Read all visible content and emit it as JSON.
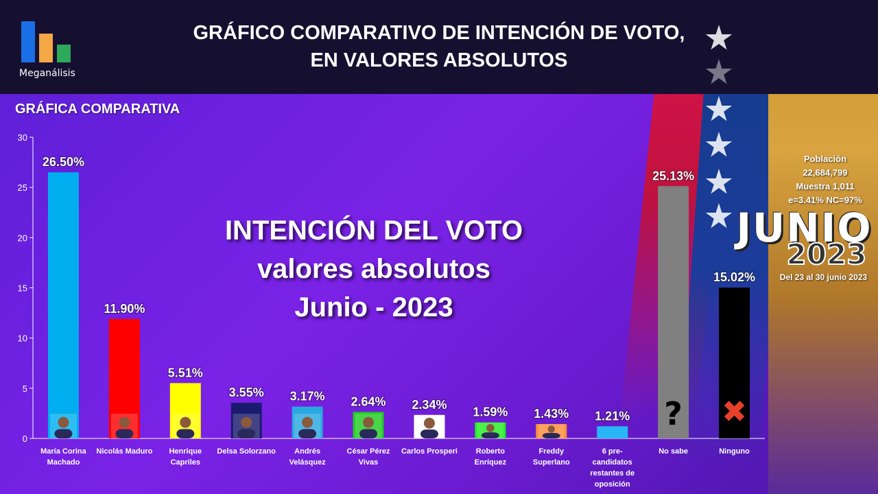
{
  "header": {
    "logo_text": "Meganálisis",
    "title_line1": "GRÁFICO COMPARATIVO DE INTENCIÓN DE VOTO,",
    "title_line2": "EN VALORES ABSOLUTOS"
  },
  "section_label": "GRÁFICA COMPARATIVA",
  "overlay": {
    "line1": "INTENCIÓN DEL VOTO",
    "line2": "valores absolutos",
    "line3": "Junio - 2023"
  },
  "info": {
    "poblacion_label": "Población",
    "poblacion_value": "22,684,799",
    "muestra": "Muestra 1,011",
    "error": "e=3.41%  NC=97%",
    "month": "JUNIO",
    "year": "2023",
    "dates": "Del 23 al 30 junio 2023"
  },
  "colors": {
    "background": "#6a1bd0",
    "header": "#161030",
    "axis": "#ffffff"
  },
  "chart_data": {
    "type": "bar",
    "ylim": [
      0,
      30
    ],
    "yticks": [
      0,
      5,
      10,
      15,
      20,
      25,
      30
    ],
    "categories": [
      {
        "name": "María Corina Machado",
        "lines": [
          "María Corina",
          "Machado"
        ],
        "value": 26.5,
        "label": "26.50%",
        "color": "#00aeef",
        "marker": "photo"
      },
      {
        "name": "Nicolás Maduro",
        "lines": [
          "Nicolás Maduro"
        ],
        "value": 11.9,
        "label": "11.90%",
        "color": "#ff0000",
        "marker": "photo"
      },
      {
        "name": "Henrique Capriles",
        "lines": [
          "Henrique",
          "Capriles"
        ],
        "value": 5.51,
        "label": "5.51%",
        "color": "#ffff00",
        "marker": "photo"
      },
      {
        "name": "Delsa Solorzano",
        "lines": [
          "Delsa Solorzano"
        ],
        "value": 3.55,
        "label": "3.55%",
        "color": "#1a1a6e",
        "marker": "photo"
      },
      {
        "name": "Andrés Velásquez",
        "lines": [
          "Andrés",
          "Velásquez"
        ],
        "value": 3.17,
        "label": "3.17%",
        "color": "#29a8e0",
        "marker": "photo"
      },
      {
        "name": "César Pérez Vivas",
        "lines": [
          "César Pérez",
          "Vivas"
        ],
        "value": 2.64,
        "label": "2.64%",
        "color": "#22cc22",
        "marker": "photo"
      },
      {
        "name": "Carlos Prosperi",
        "lines": [
          "Carlos Prosperi"
        ],
        "value": 2.34,
        "label": "2.34%",
        "color": "#ffffff",
        "marker": "photo"
      },
      {
        "name": "Roberto Enríquez",
        "lines": [
          "Roberto",
          "Enríquez"
        ],
        "value": 1.59,
        "label": "1.59%",
        "color": "#22ee22",
        "marker": "photo"
      },
      {
        "name": "Freddy Superlano",
        "lines": [
          "Freddy",
          "Superlano"
        ],
        "value": 1.43,
        "label": "1.43%",
        "color": "#ff8c3a",
        "marker": "photo"
      },
      {
        "name": "6 pre-candidatos restantes de oposición",
        "lines": [
          "6 pre-",
          "candidatos",
          "restantes de",
          "oposición"
        ],
        "value": 1.21,
        "label": "1.21%",
        "color": "#29b6f6",
        "marker": "none"
      },
      {
        "name": "No sabe",
        "lines": [
          "No sabe"
        ],
        "value": 25.13,
        "label": "25.13%",
        "color": "#808080",
        "marker": "question"
      },
      {
        "name": "Ninguno",
        "lines": [
          "Ninguno"
        ],
        "value": 15.02,
        "label": "15.02%",
        "color": "#000000",
        "marker": "cross"
      }
    ]
  }
}
